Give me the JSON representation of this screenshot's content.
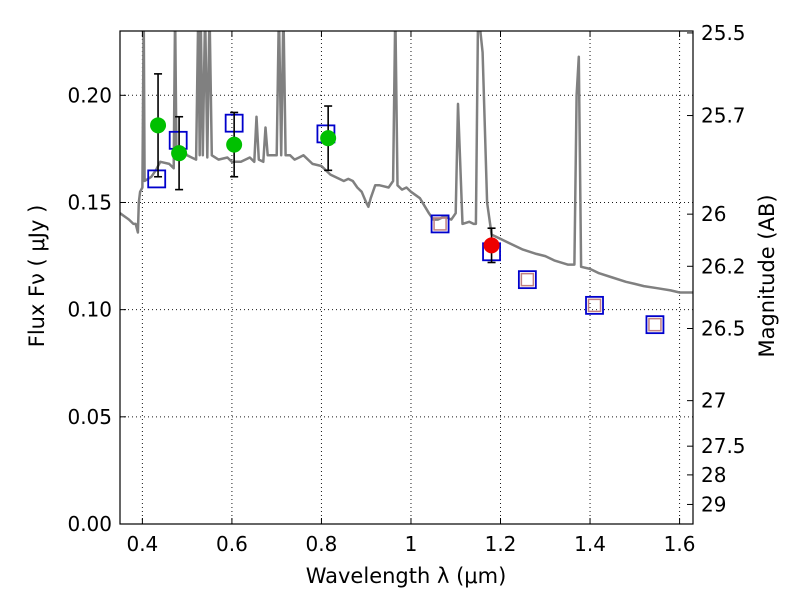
{
  "chart_data": {
    "type": "scatter",
    "xlabel": "Wavelength  λ (μm)",
    "ylabel": "Flux  Fν  ( μJy )",
    "ylabel_right": "Magnitude (AB)",
    "xlim": [
      0.35,
      1.63
    ],
    "ylim": [
      0.0,
      0.23
    ],
    "x_ticks": [
      0.4,
      0.6,
      0.8,
      1.0,
      1.2,
      1.4,
      1.6
    ],
    "x_tick_labels": [
      "0.4",
      "0.6",
      "0.8",
      "1",
      "1.2",
      "1.4",
      "1.6"
    ],
    "y_ticks": [
      0.0,
      0.05,
      0.1,
      0.15,
      0.2
    ],
    "y_tick_labels": [
      "0.00",
      "0.05",
      "0.10",
      "0.15",
      "0.20"
    ],
    "mag_ticks": [
      25.5,
      25.7,
      26,
      26.2,
      26.5,
      27,
      27.5,
      28,
      29
    ],
    "mag_tick_labels": [
      "25.5",
      "25.7",
      "26",
      "26.2",
      "26.5",
      "27",
      "27.5",
      "28",
      "29"
    ],
    "grid": true,
    "colors": {
      "model": "#808080",
      "model_box": "#0000cc",
      "observed_optical": "#00c000",
      "observed_nir": "#ee0000",
      "nir_box_inner": "#c08080",
      "error_bar": "#000000"
    },
    "series": [
      {
        "name": "model spectrum",
        "kind": "line",
        "color": "#808080",
        "points": [
          [
            0.35,
            0.145
          ],
          [
            0.37,
            0.142
          ],
          [
            0.38,
            0.14
          ],
          [
            0.385,
            0.14
          ],
          [
            0.39,
            0.136
          ],
          [
            0.392,
            0.15
          ],
          [
            0.395,
            0.155
          ],
          [
            0.4,
            0.157
          ],
          [
            0.403,
            0.24
          ],
          [
            0.405,
            0.16
          ],
          [
            0.42,
            0.162
          ],
          [
            0.43,
            0.165
          ],
          [
            0.44,
            0.169
          ],
          [
            0.46,
            0.168
          ],
          [
            0.47,
            0.166
          ],
          [
            0.473,
            0.24
          ],
          [
            0.476,
            0.174
          ],
          [
            0.49,
            0.175
          ],
          [
            0.5,
            0.172
          ],
          [
            0.51,
            0.171
          ],
          [
            0.52,
            0.17
          ],
          [
            0.525,
            0.24
          ],
          [
            0.528,
            0.172
          ],
          [
            0.53,
            0.24
          ],
          [
            0.535,
            0.172
          ],
          [
            0.54,
            0.24
          ],
          [
            0.545,
            0.171
          ],
          [
            0.55,
            0.24
          ],
          [
            0.555,
            0.172
          ],
          [
            0.57,
            0.17
          ],
          [
            0.59,
            0.171
          ],
          [
            0.6,
            0.169
          ],
          [
            0.62,
            0.169
          ],
          [
            0.64,
            0.171
          ],
          [
            0.65,
            0.169
          ],
          [
            0.655,
            0.19
          ],
          [
            0.66,
            0.17
          ],
          [
            0.67,
            0.169
          ],
          [
            0.675,
            0.185
          ],
          [
            0.68,
            0.172
          ],
          [
            0.7,
            0.172
          ],
          [
            0.705,
            0.24
          ],
          [
            0.71,
            0.172
          ],
          [
            0.715,
            0.24
          ],
          [
            0.72,
            0.172
          ],
          [
            0.73,
            0.172
          ],
          [
            0.74,
            0.17
          ],
          [
            0.75,
            0.171
          ],
          [
            0.76,
            0.172
          ],
          [
            0.78,
            0.168
          ],
          [
            0.8,
            0.167
          ],
          [
            0.81,
            0.165
          ],
          [
            0.82,
            0.163
          ],
          [
            0.83,
            0.162
          ],
          [
            0.85,
            0.16
          ],
          [
            0.86,
            0.161
          ],
          [
            0.87,
            0.16
          ],
          [
            0.88,
            0.157
          ],
          [
            0.89,
            0.155
          ],
          [
            0.9,
            0.15
          ],
          [
            0.905,
            0.148
          ],
          [
            0.91,
            0.152
          ],
          [
            0.92,
            0.158
          ],
          [
            0.93,
            0.158
          ],
          [
            0.95,
            0.157
          ],
          [
            0.96,
            0.16
          ],
          [
            0.965,
            0.24
          ],
          [
            0.97,
            0.158
          ],
          [
            0.98,
            0.156
          ],
          [
            0.99,
            0.157
          ],
          [
            1.0,
            0.155
          ],
          [
            1.02,
            0.152
          ],
          [
            1.04,
            0.145
          ],
          [
            1.05,
            0.142
          ],
          [
            1.06,
            0.142
          ],
          [
            1.07,
            0.143
          ],
          [
            1.08,
            0.143
          ],
          [
            1.09,
            0.142
          ],
          [
            1.1,
            0.145
          ],
          [
            1.105,
            0.196
          ],
          [
            1.115,
            0.14
          ],
          [
            1.13,
            0.141
          ],
          [
            1.14,
            0.14
          ],
          [
            1.145,
            0.14
          ],
          [
            1.15,
            0.24
          ],
          [
            1.16,
            0.22
          ],
          [
            1.17,
            0.15
          ],
          [
            1.18,
            0.135
          ],
          [
            1.2,
            0.133
          ],
          [
            1.22,
            0.131
          ],
          [
            1.25,
            0.128
          ],
          [
            1.28,
            0.126
          ],
          [
            1.3,
            0.125
          ],
          [
            1.32,
            0.123
          ],
          [
            1.35,
            0.121
          ],
          [
            1.365,
            0.121
          ],
          [
            1.37,
            0.2
          ],
          [
            1.375,
            0.218
          ],
          [
            1.38,
            0.12
          ],
          [
            1.4,
            0.119
          ],
          [
            1.42,
            0.117
          ],
          [
            1.45,
            0.115
          ],
          [
            1.48,
            0.113
          ],
          [
            1.5,
            0.112
          ],
          [
            1.52,
            0.111
          ],
          [
            1.55,
            0.11
          ],
          [
            1.58,
            0.109
          ],
          [
            1.6,
            0.108
          ],
          [
            1.63,
            0.108
          ]
        ]
      },
      {
        "name": "model band flux",
        "kind": "square",
        "color": "#0000cc",
        "points": [
          [
            0.432,
            0.161
          ],
          [
            0.48,
            0.179
          ],
          [
            0.605,
            0.187
          ],
          [
            0.81,
            0.182
          ],
          [
            1.065,
            0.14
          ],
          [
            1.18,
            0.127
          ],
          [
            1.26,
            0.114
          ],
          [
            1.41,
            0.102
          ],
          [
            1.545,
            0.093
          ]
        ]
      },
      {
        "name": "observed optical",
        "kind": "circle",
        "color": "#00c000",
        "points": [
          [
            0.435,
            0.186
          ],
          [
            0.482,
            0.173
          ],
          [
            0.605,
            0.177
          ],
          [
            0.815,
            0.18
          ]
        ],
        "errors": [
          0.024,
          0.017,
          0.015,
          0.015
        ]
      },
      {
        "name": "observed near-IR",
        "kind": "circle",
        "color": "#ee0000",
        "points": [
          [
            1.18,
            0.13
          ]
        ],
        "errors": [
          0.008
        ]
      },
      {
        "name": "model band flux inner",
        "kind": "square-inner",
        "color": "#c08080",
        "points": [
          [
            1.065,
            0.14
          ],
          [
            1.26,
            0.114
          ],
          [
            1.41,
            0.102
          ],
          [
            1.545,
            0.093
          ]
        ]
      }
    ]
  }
}
